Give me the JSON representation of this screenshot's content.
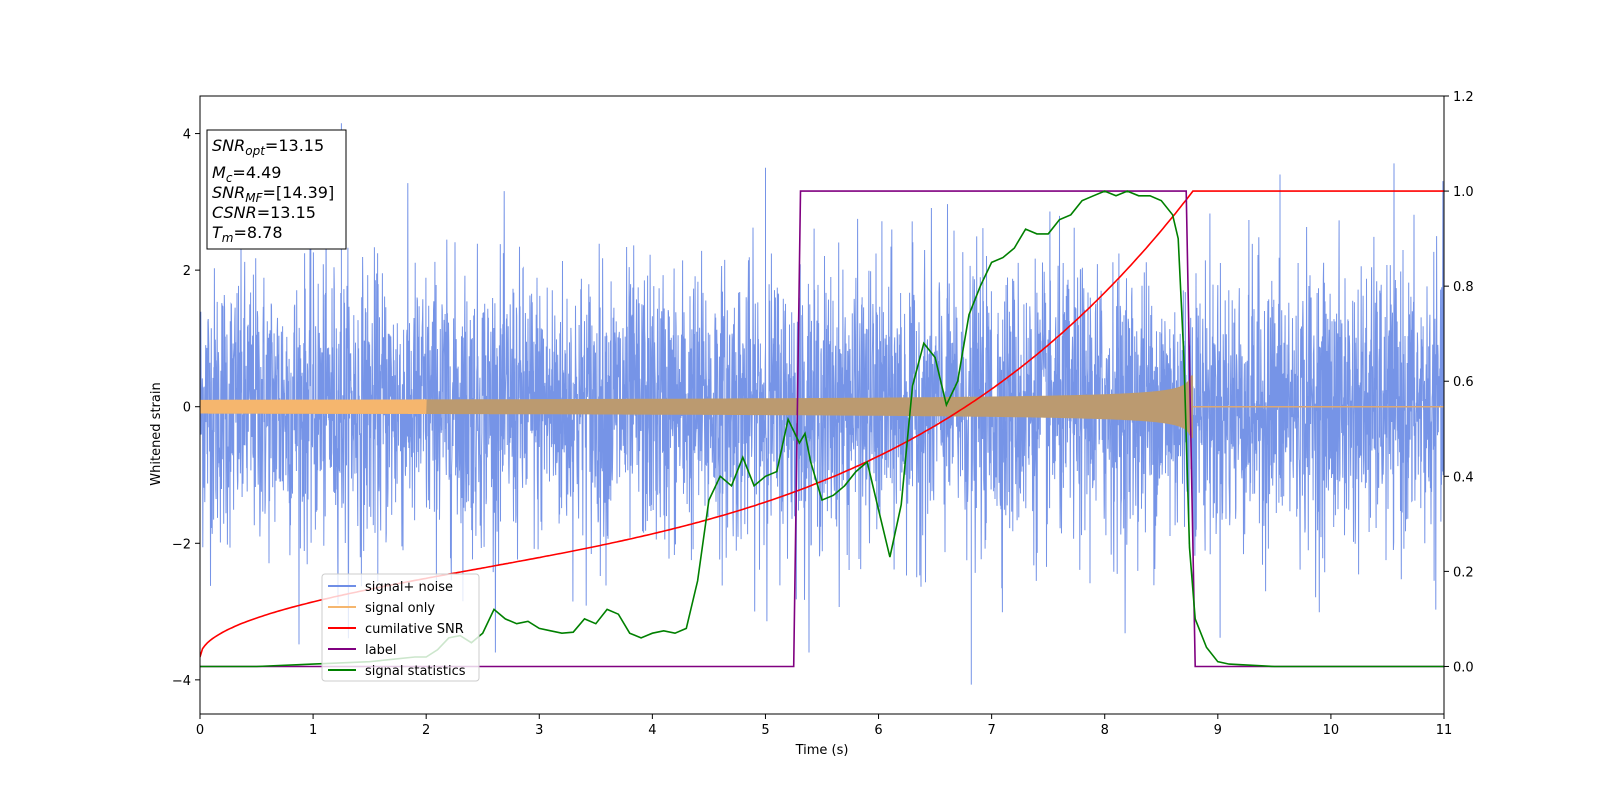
{
  "chart_data": {
    "type": "line",
    "xlabel": "Time (s)",
    "ylabel": "Whitened strain",
    "xlim": [
      0,
      11
    ],
    "ylim_left": [
      -4.5,
      4.55
    ],
    "ylim_right": [
      -0.1,
      1.2
    ],
    "x_ticks": [
      "0",
      "1",
      "2",
      "3",
      "4",
      "5",
      "6",
      "7",
      "8",
      "9",
      "10",
      "11"
    ],
    "y_left_ticks": [
      "−4",
      "−2",
      "0",
      "2",
      "4"
    ],
    "y_right_ticks": [
      "0.0",
      "0.2",
      "0.4",
      "0.6",
      "0.8",
      "1.0",
      "1.2"
    ],
    "grid": false,
    "legend_position": "lower-left",
    "colors": {
      "noise": "#6f8ee6",
      "signal": "#f5b66e",
      "csnr": "#ff0000",
      "label": "#800080",
      "stats": "#008000"
    },
    "info_box": {
      "snr_opt_name": "SNR",
      "snr_opt_sub": "opt",
      "snr_opt_value": "=13.15",
      "mc_name": "M",
      "mc_sub": "c",
      "mc_value": "=4.49",
      "snr_mf_name": "SNR",
      "snr_mf_sub": "MF",
      "snr_mf_value": "=[14.39]",
      "csnr_name": "CSNR",
      "csnr_value": "=13.15",
      "tm_name": "T",
      "tm_sub": "m",
      "tm_value": "=8.78"
    },
    "series": [
      {
        "name": "signal+ noise",
        "axis": "left",
        "description_type": "noisy strain",
        "x_range": [
          0,
          11
        ],
        "typical_amplitude": 2.3,
        "extremes": [
          [
            1.25,
            4.15
          ],
          [
            6.82,
            -4.07
          ],
          [
            5.0,
            3.5
          ],
          [
            9.55,
            3.4
          ]
        ]
      },
      {
        "name": "signal only",
        "axis": "left",
        "chirp_start": 0,
        "chirp_end": 8.78,
        "amplitude_start": 0.1,
        "amplitude_end": 0.75
      },
      {
        "name": "cumilative SNR",
        "axis": "right",
        "x": [
          0,
          0.5,
          1,
          1.5,
          2,
          2.5,
          3,
          3.5,
          4,
          4.5,
          5,
          5.5,
          6,
          6.5,
          7,
          7.5,
          8,
          8.3,
          8.5,
          8.7,
          8.78,
          11
        ],
        "y": [
          0.02,
          0.08,
          0.11,
          0.14,
          0.165,
          0.185,
          0.21,
          0.235,
          0.26,
          0.29,
          0.32,
          0.355,
          0.395,
          0.44,
          0.5,
          0.575,
          0.68,
          0.76,
          0.83,
          0.93,
          1.0,
          1.0
        ]
      },
      {
        "name": "label",
        "axis": "right",
        "x": [
          0,
          5.25,
          5.31,
          8.72,
          8.8,
          11
        ],
        "y": [
          0.0,
          0.0,
          1.0,
          1.0,
          0.0,
          0.0
        ]
      },
      {
        "name": "signal statistics",
        "axis": "right",
        "x": [
          0,
          0.5,
          1,
          1.5,
          1.7,
          1.9,
          2.0,
          2.1,
          2.2,
          2.3,
          2.4,
          2.5,
          2.6,
          2.7,
          2.8,
          2.9,
          3.0,
          3.1,
          3.2,
          3.3,
          3.4,
          3.5,
          3.6,
          3.7,
          3.8,
          3.9,
          4.0,
          4.1,
          4.2,
          4.3,
          4.4,
          4.5,
          4.6,
          4.7,
          4.8,
          4.9,
          5.0,
          5.1,
          5.2,
          5.3,
          5.35,
          5.4,
          5.5,
          5.6,
          5.7,
          5.8,
          5.9,
          6.0,
          6.1,
          6.2,
          6.3,
          6.4,
          6.5,
          6.6,
          6.7,
          6.8,
          6.9,
          7.0,
          7.1,
          7.2,
          7.3,
          7.4,
          7.5,
          7.6,
          7.7,
          7.8,
          7.9,
          8.0,
          8.1,
          8.2,
          8.3,
          8.4,
          8.5,
          8.6,
          8.65,
          8.7,
          8.75,
          8.8,
          8.9,
          9.0,
          9.1,
          9.5,
          10,
          11
        ],
        "y": [
          0.0,
          0.0,
          0.005,
          0.01,
          0.015,
          0.02,
          0.02,
          0.035,
          0.06,
          0.065,
          0.05,
          0.07,
          0.12,
          0.1,
          0.09,
          0.095,
          0.08,
          0.075,
          0.07,
          0.072,
          0.1,
          0.09,
          0.12,
          0.11,
          0.07,
          0.06,
          0.07,
          0.075,
          0.07,
          0.08,
          0.18,
          0.35,
          0.4,
          0.38,
          0.44,
          0.38,
          0.4,
          0.41,
          0.52,
          0.47,
          0.49,
          0.43,
          0.35,
          0.36,
          0.38,
          0.41,
          0.43,
          0.33,
          0.23,
          0.34,
          0.59,
          0.68,
          0.65,
          0.55,
          0.6,
          0.74,
          0.8,
          0.85,
          0.86,
          0.88,
          0.92,
          0.91,
          0.91,
          0.94,
          0.95,
          0.98,
          0.99,
          1.0,
          0.99,
          1.0,
          0.99,
          0.99,
          0.98,
          0.95,
          0.9,
          0.65,
          0.25,
          0.1,
          0.04,
          0.01,
          0.005,
          0.0,
          0.0,
          0.0
        ]
      }
    ]
  }
}
